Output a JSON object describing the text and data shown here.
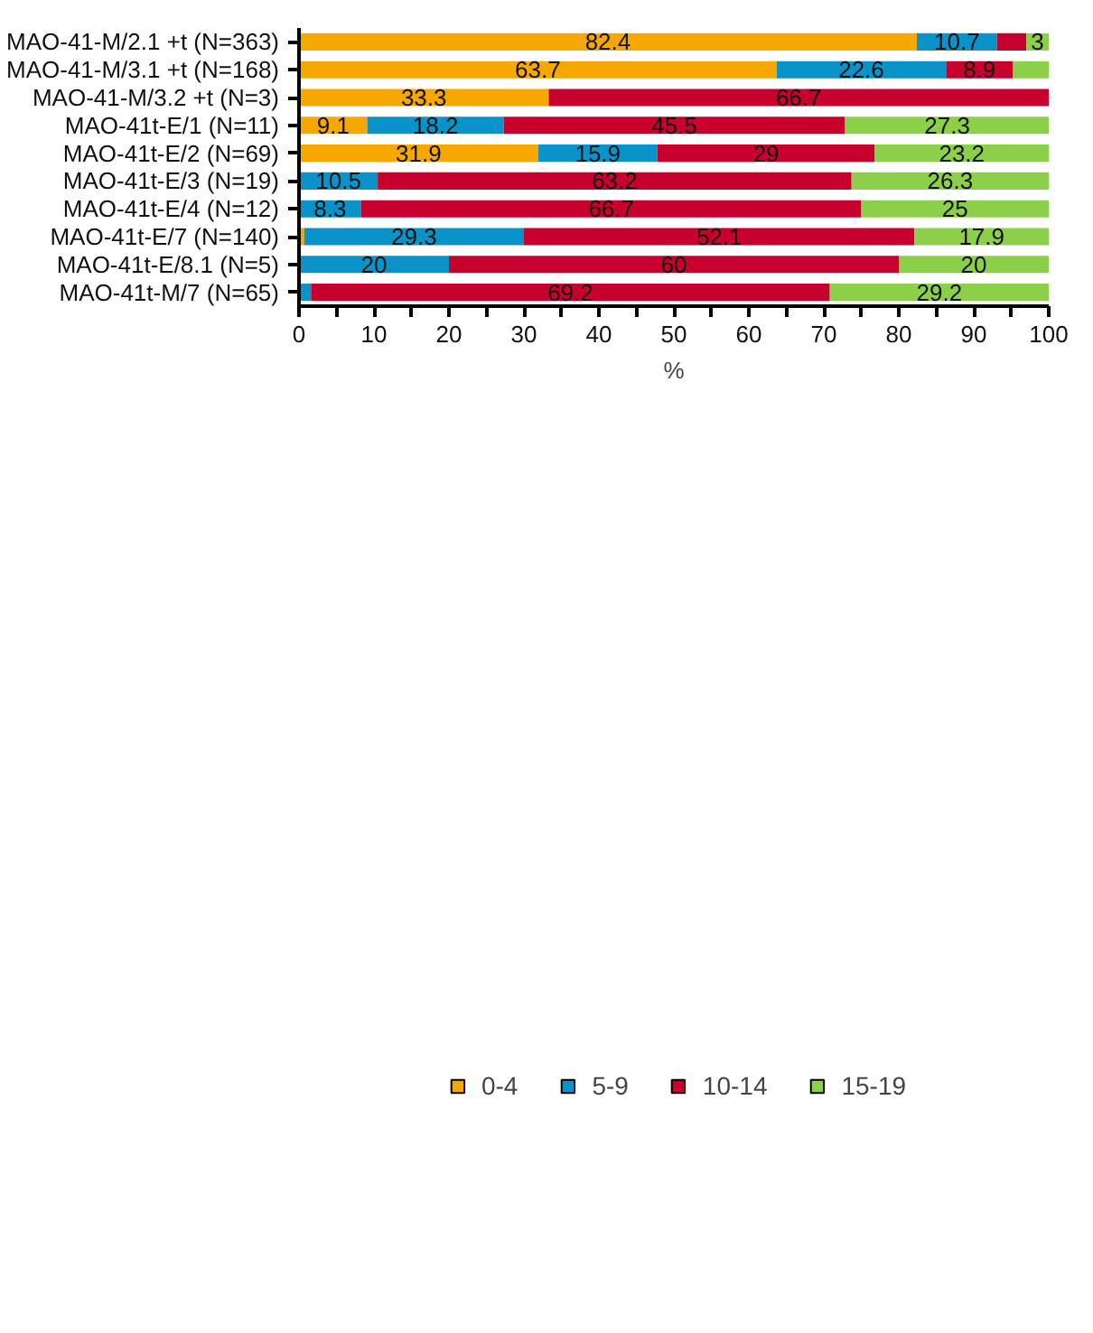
{
  "chart_data": {
    "type": "bar",
    "orientation": "horizontal",
    "stacked": true,
    "xlabel": "%",
    "categories": [
      "MAO-41-M/2.1 +t (N=363)",
      "MAO-41-M/3.1 +t (N=168)",
      "MAO-41-M/3.2 +t (N=3)",
      "MAO-41t-E/1 (N=11)",
      "MAO-41t-E/2 (N=69)",
      "MAO-41t-E/3 (N=19)",
      "MAO-41t-E/4 (N=12)",
      "MAO-41t-E/7 (N=140)",
      "MAO-41t-E/8.1 (N=5)",
      "MAO-41t-M/7 (N=65)"
    ],
    "series": [
      {
        "name": "0-4",
        "color": "#f7a800",
        "values": [
          82.4,
          63.7,
          33.3,
          9.1,
          31.9,
          null,
          null,
          0.7,
          null,
          null
        ],
        "value_labels": [
          "82.4",
          "63.7",
          "33.3",
          "9.1",
          "31.9",
          null,
          null,
          null,
          null,
          null
        ]
      },
      {
        "name": "5-9",
        "color": "#0a93c9",
        "values": [
          10.7,
          22.6,
          null,
          18.2,
          15.9,
          10.5,
          8.3,
          29.3,
          20,
          1.6
        ],
        "value_labels": [
          "10.7",
          "22.6",
          null,
          "18.2",
          "15.9",
          "10.5",
          "8.3",
          "29.3",
          "20",
          null
        ]
      },
      {
        "name": "10-14",
        "color": "#c8002d",
        "values": [
          3.9,
          8.9,
          66.7,
          45.5,
          29,
          63.2,
          66.7,
          52.1,
          60,
          69.2
        ],
        "value_labels": [
          null,
          "8.9",
          "66.7",
          "45.5",
          "29",
          "63.2",
          "66.7",
          "52.1",
          "60",
          "69.2"
        ]
      },
      {
        "name": "15-19",
        "color": "#8ccf4a",
        "values": [
          3,
          4.8,
          null,
          27.3,
          23.2,
          26.3,
          25,
          17.9,
          20,
          29.2
        ],
        "value_labels": [
          "3",
          null,
          null,
          "27.3",
          "23.2",
          "26.3",
          "25",
          "17.9",
          "20",
          "29.2"
        ]
      }
    ],
    "xlim": [
      0,
      100
    ],
    "xticks": [
      0,
      {
        "value": 5,
        "label": null
      },
      10,
      {
        "value": 15,
        "label": null
      },
      20,
      {
        "value": 25,
        "label": null
      },
      30,
      {
        "value": 35,
        "label": null
      },
      40,
      {
        "value": 45,
        "label": null
      },
      50,
      {
        "value": 55,
        "label": null
      },
      60,
      {
        "value": 65,
        "label": null
      },
      70,
      {
        "value": 75,
        "label": null
      },
      80,
      {
        "value": 85,
        "label": null
      },
      90,
      {
        "value": 95,
        "label": null
      },
      100
    ],
    "grid": false,
    "legend": "bottom"
  }
}
